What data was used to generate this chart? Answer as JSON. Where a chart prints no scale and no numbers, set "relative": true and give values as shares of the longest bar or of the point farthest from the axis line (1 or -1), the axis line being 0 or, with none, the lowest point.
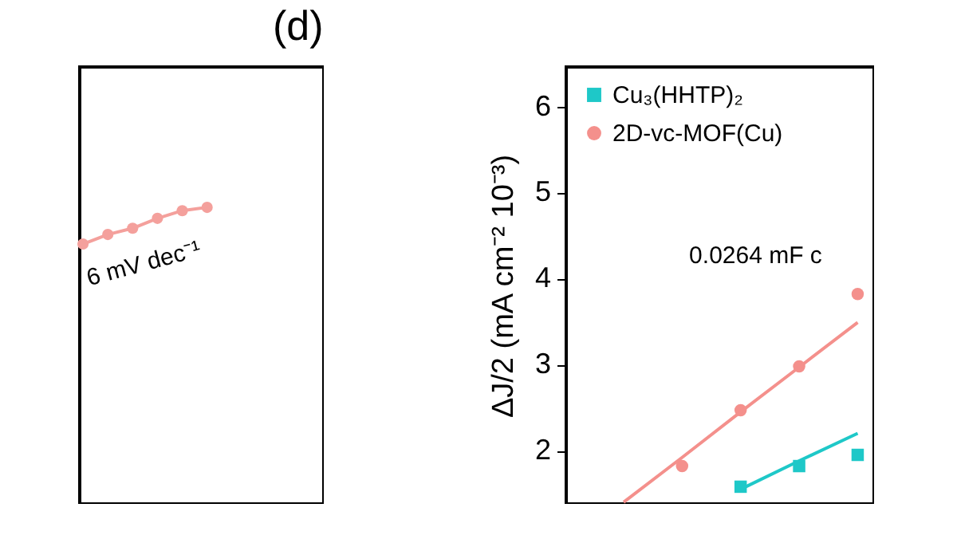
{
  "chart_data": [
    {
      "type": "line",
      "relative": true,
      "tick_labels": false,
      "marker": "circle",
      "categories": [
        null,
        null,
        null,
        null,
        null,
        null
      ],
      "series": [
        {
          "color": "#f4a09c",
          "values": [
            0,
            0.26,
            0.43,
            0.7,
            0.91,
            1
          ]
        }
      ],
      "annotations": [
        "6 mV dec⁻¹"
      ]
    },
    {
      "type": "scatter",
      "title": "(d)",
      "ylabel": "ΔJ/2 (mA cm⁻² 10⁻³)",
      "categories": [
        null,
        null,
        null,
        null,
        null
      ],
      "ylim": [
        1.38,
        6.46
      ],
      "yticks": [
        2,
        3,
        4,
        5,
        6
      ],
      "tick_labels": "y",
      "legend": "top left",
      "series": [
        {
          "name": "Cu₃(HHTP)₂",
          "color": "#1ec8c8",
          "marker": "square",
          "values": [
            null,
            null,
            1.58,
            1.82,
            1.95
          ]
        },
        {
          "name": "2D-vc-MOF(Cu)",
          "color": "#f4908c",
          "marker": "circle",
          "values": [
            null,
            1.82,
            2.47,
            2.98,
            3.82
          ]
        },
        {
          "type": "line",
          "color": "#1ec8c8",
          "values": [
            null,
            null,
            1.55,
            1.88,
            2.2
          ]
        },
        {
          "type": "line",
          "color": "#f4908c",
          "values": [
            1.4,
            1.92,
            2.45,
            2.97,
            3.49
          ]
        }
      ],
      "annotations": [
        "0.0264 mF c"
      ]
    }
  ]
}
